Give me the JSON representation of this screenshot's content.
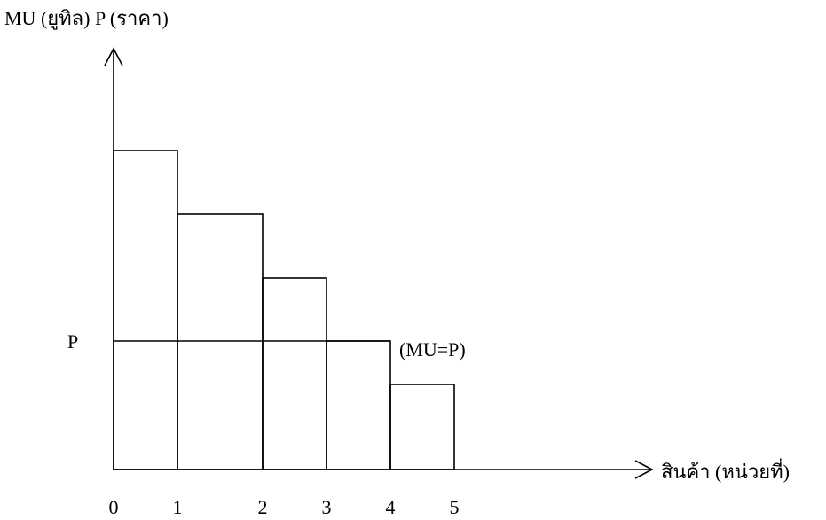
{
  "axis": {
    "y_label": "MU (ยูทิล) P (ราคา)",
    "x_label": "สินค้า (หน่วยที่)"
  },
  "labels": {
    "price": "P",
    "equilibrium": "(MU=P)"
  },
  "x_ticks": [
    "0",
    "1",
    "2",
    "3",
    "4",
    "5"
  ]
}
